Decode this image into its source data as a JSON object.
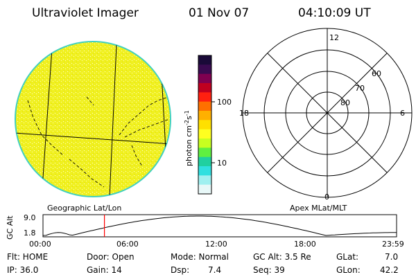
{
  "header": {
    "instrument": "Ultraviolet Imager",
    "date": "01 Nov 07",
    "time": "04:10:09 UT"
  },
  "colorbar": {
    "unit": "photon cm",
    "unit_exp1": "-2",
    "unit_mid": "s",
    "unit_exp2": "-1",
    "tick_100": "100",
    "tick_10": "10",
    "colors": [
      "#1a0a38",
      "#3a0a50",
      "#800050",
      "#c00020",
      "#ff2010",
      "#ff7000",
      "#ffb000",
      "#ffe000",
      "#ffff20",
      "#c8ff20",
      "#60f040",
      "#20d0a0",
      "#30e0e0",
      "#a0f0f0",
      "#e8f8f8"
    ]
  },
  "earth": {
    "fill_color": "#f0f020",
    "rim_color": "#40d0c0"
  },
  "polar": {
    "mlt_12": "12",
    "mlt_18": "18",
    "mlt_6": "6",
    "mlt_0": "0",
    "lat_60": "60",
    "lat_70": "70",
    "lat_80": "80"
  },
  "panel_labels": {
    "left": "Geographic Lat/Lon",
    "right": "Apex MLat/MLT"
  },
  "altitude_plot": {
    "ylabel": "GC Alt",
    "y_top": "9.0",
    "y_bottom": "1.8",
    "x_ticks": [
      "00:00",
      "06:00",
      "12:00",
      "18:00",
      "23:59"
    ],
    "marker_color": "#ff0000",
    "marker_time_hours": 4.17
  },
  "info": {
    "flt": "Flt: HOME",
    "door": "Door: Open",
    "mode": "Mode: Normal",
    "gcalt": "GC Alt: 3.5 Re",
    "glat_label": "GLat:",
    "glat_value": "7.0",
    "ip": "IP: 36.0",
    "gain": "Gain: 14",
    "dsp_label": "Dsp:",
    "dsp_value": "7.4",
    "seq": "Seq: 39",
    "glon_label": "GLon:",
    "glon_value": "42.2"
  }
}
